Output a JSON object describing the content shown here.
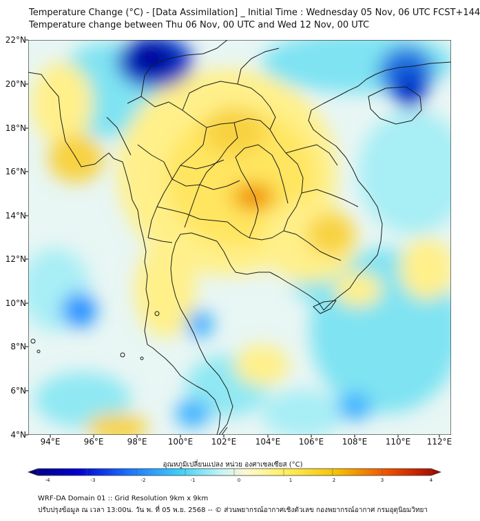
{
  "header": {
    "title_line1": "Temperature Change (°C) - [Data Assimilation] _ Initial Time : Wednesday 05 Nov, 06 UTC FCST+144",
    "title_line2": "Temperature change between Thu 06 Nov, 00 UTC and Wed 12 Nov, 00 UTC"
  },
  "map": {
    "lat_labels": [
      "22°N",
      "20°N",
      "18°N",
      "16°N",
      "14°N",
      "12°N",
      "10°N",
      "8°N",
      "6°N",
      "4°N"
    ],
    "lon_labels": [
      "94°E",
      "96°E",
      "98°E",
      "100°E",
      "102°E",
      "104°E",
      "106°E",
      "108°E",
      "110°E",
      "112°E"
    ]
  },
  "colorbar": {
    "title": "อุณหภูมิเปลี่ยนแปลง หน่วย องศาเซลเซียส (°C)",
    "tick_labels": [
      "-4",
      "-3",
      "-2",
      "-1",
      "0",
      "1",
      "2",
      "3",
      "4"
    ],
    "min": -4,
    "max": 4
  },
  "footer": {
    "line1": "WRF-DA Domain 01 :: Grid Resolution 9km x 9km",
    "line2": "ปรับปรุงข้อมูล ณ เวลา 13:00น. วัน พ. ที่ 05 พ.ย. 2568 -- © ส่วนพยากรณ์อากาศเชิงตัวเลข กองพยากรณ์อากาศ กรมอุตุนิยมวิทยา"
  },
  "colors": {
    "zero": "#e8f6f4",
    "cold_strong": "#00009a",
    "cold_mid": "#1e90ff",
    "cool_light": "#7fe3f2",
    "warm_light": "#fff08a",
    "warm_mid": "#f5c800",
    "warm_strong": "#f07800",
    "hot": "#b00000",
    "coastline": "#1a1a1a"
  }
}
